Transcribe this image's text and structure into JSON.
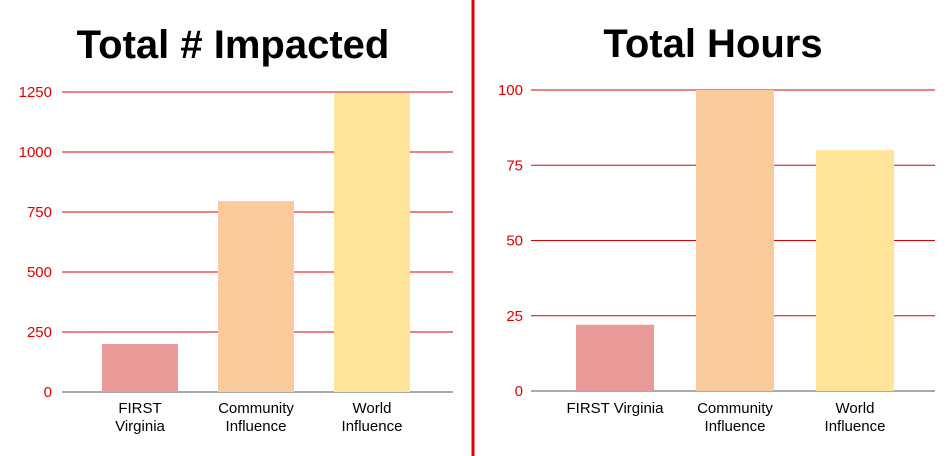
{
  "colors": {
    "gridline": "#e00000",
    "tick_text": "#e00000",
    "axis_line": "#555555",
    "divider": "#e00000"
  },
  "chart_data": [
    {
      "type": "bar",
      "title": "Total # Impacted",
      "categories": [
        "FIRST Virginia",
        "Community Influence",
        "World Influence"
      ],
      "category_lines": [
        [
          "FIRST",
          "Virginia"
        ],
        [
          "Community",
          "Influence"
        ],
        [
          "World",
          "Influence"
        ]
      ],
      "values": [
        200,
        795,
        1245
      ],
      "colors": [
        "#ea9999",
        "#f9cb9c",
        "#ffe599"
      ],
      "ylim": [
        0,
        1250
      ],
      "yticks": [
        0,
        250,
        500,
        750,
        1000,
        1250
      ],
      "xlabel": "",
      "ylabel": "",
      "grid": true,
      "legend": "none"
    },
    {
      "type": "bar",
      "title": "Total Hours",
      "categories": [
        "FIRST Virginia",
        "Community Influence",
        "World Influence"
      ],
      "category_lines": [
        [
          "FIRST Virginia"
        ],
        [
          "Community",
          "Influence"
        ],
        [
          "World",
          "Influence"
        ]
      ],
      "values": [
        22,
        100,
        80
      ],
      "colors": [
        "#ea9999",
        "#f9cb9c",
        "#ffe599"
      ],
      "ylim": [
        0,
        100
      ],
      "yticks": [
        0,
        25,
        50,
        75,
        100
      ],
      "xlabel": "",
      "ylabel": "",
      "grid": true,
      "legend": "none"
    }
  ]
}
